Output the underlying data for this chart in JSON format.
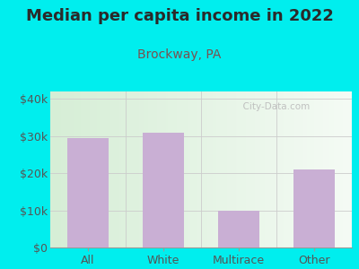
{
  "title": "Median per capita income in 2022",
  "subtitle": "Brockway, PA",
  "categories": [
    "All",
    "White",
    "Multirace",
    "Other"
  ],
  "values": [
    29500,
    31000,
    9800,
    21000
  ],
  "bar_color": "#c9afd4",
  "background_outer": "#00eeee",
  "background_inner_start": "#d6eed6",
  "background_inner_end": "#f5fbf5",
  "title_color": "#2a2a2a",
  "subtitle_color": "#7a5050",
  "tick_color": "#555555",
  "watermark_color": "#bbbbbb",
  "ylim": [
    0,
    42000
  ],
  "yticks": [
    0,
    10000,
    20000,
    30000,
    40000
  ],
  "ytick_labels": [
    "$0",
    "$10k",
    "$20k",
    "$30k",
    "$40k"
  ],
  "title_fontsize": 13,
  "subtitle_fontsize": 10,
  "tick_fontsize": 9
}
